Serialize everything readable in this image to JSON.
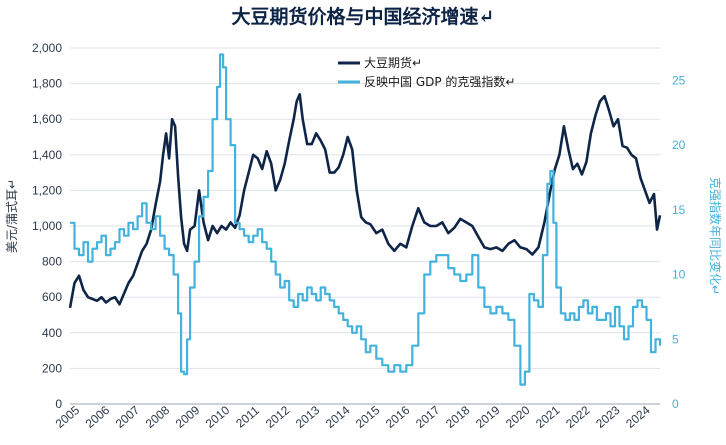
{
  "chart_data": {
    "type": "line",
    "title": "大豆期货价格与中国经济增速↵",
    "ylabel_left": "美元/蒲式耳↵",
    "ylabel_right": "克强指数年同比变化↵",
    "xlabel": "",
    "x_ticks": [
      "2005",
      "2006",
      "2007",
      "2008",
      "2009",
      "2010",
      "2011",
      "2012",
      "2013",
      "2014",
      "2015",
      "2016",
      "2017",
      "2018",
      "2019",
      "2020",
      "2021",
      "2022",
      "2023",
      "2024"
    ],
    "xlim": [
      2005,
      2024.65
    ],
    "ylim_left": [
      0,
      2000
    ],
    "ylim_right": [
      0,
      27.5
    ],
    "y_ticks_left": [
      0,
      200,
      400,
      600,
      800,
      1000,
      1200,
      1400,
      1600,
      1800,
      2000
    ],
    "y_tick_labels_left": [
      "0",
      "200",
      "400",
      "600",
      "800",
      "1,000",
      "1,200",
      "1,400",
      "1,600",
      "1,800",
      "2,000"
    ],
    "y_ticks_right": [
      0,
      5,
      10,
      15,
      20,
      25
    ],
    "y_tick_labels_right": [
      "0",
      "5",
      "10",
      "15",
      "20",
      "25"
    ],
    "grid": true,
    "legend_position": "top-center",
    "series": [
      {
        "name": "大豆期货↵",
        "axis": "left",
        "color": "#0f2547",
        "x": [
          2005.0,
          2005.15,
          2005.3,
          2005.45,
          2005.6,
          2005.75,
          2005.9,
          2006.05,
          2006.2,
          2006.35,
          2006.5,
          2006.65,
          2006.8,
          2006.95,
          2007.1,
          2007.25,
          2007.4,
          2007.55,
          2007.7,
          2007.85,
          2008.0,
          2008.1,
          2008.2,
          2008.3,
          2008.4,
          2008.5,
          2008.6,
          2008.7,
          2008.8,
          2008.9,
          2009.0,
          2009.15,
          2009.3,
          2009.45,
          2009.6,
          2009.75,
          2009.9,
          2010.05,
          2010.2,
          2010.35,
          2010.5,
          2010.65,
          2010.8,
          2010.95,
          2011.1,
          2011.25,
          2011.4,
          2011.55,
          2011.7,
          2011.85,
          2012.0,
          2012.15,
          2012.3,
          2012.45,
          2012.55,
          2012.65,
          2012.75,
          2012.9,
          2013.05,
          2013.2,
          2013.35,
          2013.5,
          2013.65,
          2013.8,
          2013.95,
          2014.1,
          2014.25,
          2014.4,
          2014.55,
          2014.7,
          2014.85,
          2015.0,
          2015.2,
          2015.4,
          2015.6,
          2015.8,
          2016.0,
          2016.2,
          2016.4,
          2016.6,
          2016.8,
          2017.0,
          2017.2,
          2017.4,
          2017.6,
          2017.8,
          2018.0,
          2018.2,
          2018.4,
          2018.6,
          2018.8,
          2019.0,
          2019.2,
          2019.4,
          2019.6,
          2019.8,
          2020.0,
          2020.2,
          2020.4,
          2020.6,
          2020.8,
          2021.0,
          2021.15,
          2021.3,
          2021.45,
          2021.6,
          2021.75,
          2021.9,
          2022.05,
          2022.2,
          2022.35,
          2022.5,
          2022.65,
          2022.8,
          2022.95,
          2023.1,
          2023.25,
          2023.4,
          2023.55,
          2023.7,
          2023.85,
          2024.0,
          2024.15,
          2024.3,
          2024.45,
          2024.55,
          2024.65
        ],
        "y": [
          540,
          680,
          720,
          640,
          600,
          590,
          580,
          600,
          570,
          590,
          600,
          560,
          620,
          680,
          720,
          790,
          860,
          900,
          980,
          1120,
          1250,
          1400,
          1520,
          1380,
          1600,
          1560,
          1280,
          1050,
          900,
          860,
          980,
          1000,
          1200,
          1020,
          920,
          1000,
          960,
          1000,
          980,
          1020,
          990,
          1060,
          1200,
          1300,
          1400,
          1380,
          1320,
          1420,
          1350,
          1200,
          1260,
          1350,
          1480,
          1600,
          1700,
          1740,
          1600,
          1460,
          1460,
          1520,
          1480,
          1430,
          1300,
          1300,
          1330,
          1400,
          1500,
          1430,
          1200,
          1050,
          1020,
          1010,
          960,
          980,
          900,
          860,
          900,
          880,
          1000,
          1100,
          1020,
          1000,
          1000,
          1020,
          960,
          990,
          1040,
          1020,
          1000,
          940,
          880,
          870,
          880,
          860,
          900,
          920,
          880,
          870,
          840,
          880,
          1020,
          1200,
          1320,
          1400,
          1560,
          1430,
          1320,
          1350,
          1290,
          1360,
          1520,
          1620,
          1700,
          1730,
          1650,
          1560,
          1600,
          1450,
          1440,
          1400,
          1380,
          1270,
          1200,
          1130,
          1180,
          980,
          1060
        ]
      },
      {
        "name": "反映中国 GDP 的克强指数↵",
        "axis": "right",
        "color": "#43b2dc",
        "x": [
          2005.0,
          2005.15,
          2005.3,
          2005.45,
          2005.6,
          2005.75,
          2005.9,
          2006.05,
          2006.2,
          2006.35,
          2006.5,
          2006.65,
          2006.8,
          2006.95,
          2007.1,
          2007.25,
          2007.4,
          2007.55,
          2007.7,
          2007.85,
          2008.0,
          2008.15,
          2008.3,
          2008.45,
          2008.6,
          2008.7,
          2008.8,
          2008.9,
          2009.0,
          2009.15,
          2009.3,
          2009.45,
          2009.6,
          2009.75,
          2009.9,
          2010.0,
          2010.1,
          2010.2,
          2010.35,
          2010.5,
          2010.65,
          2010.8,
          2010.95,
          2011.1,
          2011.25,
          2011.4,
          2011.55,
          2011.7,
          2011.85,
          2012.0,
          2012.15,
          2012.3,
          2012.45,
          2012.6,
          2012.75,
          2012.9,
          2013.05,
          2013.2,
          2013.35,
          2013.5,
          2013.65,
          2013.8,
          2013.95,
          2014.1,
          2014.25,
          2014.4,
          2014.55,
          2014.7,
          2014.85,
          2015.0,
          2015.2,
          2015.4,
          2015.6,
          2015.8,
          2016.0,
          2016.2,
          2016.4,
          2016.6,
          2016.8,
          2017.0,
          2017.2,
          2017.4,
          2017.6,
          2017.8,
          2018.0,
          2018.2,
          2018.4,
          2018.6,
          2018.8,
          2019.0,
          2019.2,
          2019.4,
          2019.6,
          2019.8,
          2020.0,
          2020.15,
          2020.3,
          2020.45,
          2020.6,
          2020.75,
          2020.9,
          2021.0,
          2021.1,
          2021.2,
          2021.35,
          2021.5,
          2021.65,
          2021.8,
          2021.95,
          2022.1,
          2022.25,
          2022.4,
          2022.55,
          2022.7,
          2022.85,
          2023.0,
          2023.15,
          2023.3,
          2023.45,
          2023.6,
          2023.75,
          2023.9,
          2024.05,
          2024.2,
          2024.35,
          2024.5,
          2024.65
        ],
        "y": [
          14.0,
          12.0,
          11.5,
          12.5,
          11.0,
          12.0,
          12.5,
          13.0,
          11.5,
          12.0,
          12.5,
          13.5,
          13.0,
          14.0,
          13.5,
          14.5,
          15.5,
          14.0,
          13.5,
          14.5,
          13.0,
          12.0,
          11.5,
          10.0,
          7.0,
          2.5,
          2.3,
          5.0,
          9.0,
          11.0,
          14.5,
          16.0,
          18.0,
          22.0,
          24.5,
          27.0,
          26.0,
          22.0,
          20.0,
          14.0,
          13.5,
          13.0,
          12.5,
          13.0,
          13.5,
          12.5,
          12.0,
          11.0,
          10.0,
          9.0,
          9.5,
          8.0,
          7.5,
          8.5,
          8.0,
          9.0,
          8.5,
          8.0,
          9.0,
          8.5,
          8.0,
          7.5,
          7.0,
          6.5,
          6.0,
          5.5,
          6.0,
          5.0,
          4.0,
          4.5,
          3.5,
          3.0,
          2.5,
          3.0,
          2.5,
          3.0,
          4.5,
          7.0,
          10.0,
          11.0,
          11.5,
          11.5,
          10.5,
          10.0,
          9.5,
          10.0,
          11.5,
          9.0,
          7.5,
          7.0,
          7.5,
          7.0,
          6.5,
          4.5,
          1.5,
          2.5,
          8.5,
          8.0,
          7.5,
          11.5,
          17.0,
          18.0,
          14.0,
          9.0,
          7.0,
          6.5,
          7.0,
          6.5,
          7.5,
          8.0,
          7.0,
          7.5,
          6.5,
          6.5,
          7.0,
          6.0,
          7.5,
          6.0,
          5.0,
          6.0,
          7.5,
          8.0,
          7.5,
          6.5,
          4.0,
          5.0,
          4.5
        ]
      }
    ]
  }
}
